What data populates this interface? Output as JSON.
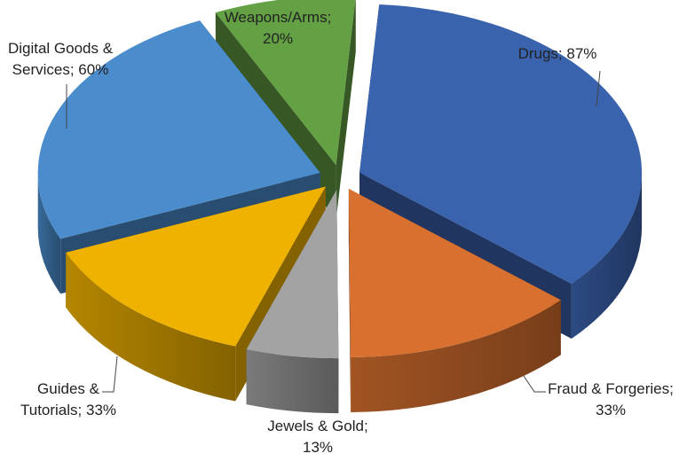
{
  "chart_data": {
    "type": "pie",
    "style": "3d-exploded",
    "title": "",
    "slices": [
      {
        "name": "Drugs",
        "value": 87,
        "label": [
          "Drugs; 87%"
        ],
        "color": "#3a63ae"
      },
      {
        "name": "Fraud & Forgeries",
        "value": 33,
        "label": [
          "Fraud & Forgeries;",
          "33%"
        ],
        "color": "#d8702f"
      },
      {
        "name": "Jewels & Gold",
        "value": 13,
        "label": [
          "Jewels & Gold;",
          "13%"
        ],
        "color": "#a3a3a3"
      },
      {
        "name": "Guides & Tutorials",
        "value": 33,
        "label": [
          "Guides  &",
          "Tutorials; 33%"
        ],
        "color": "#f0b200"
      },
      {
        "name": "Digital Goods & Services",
        "value": 60,
        "label": [
          "Digital Goods &",
          "Services; 60%"
        ],
        "color": "#4b8ccc"
      },
      {
        "name": "Weapons/Arms",
        "value": 20,
        "label": [
          "Weapons/Arms;",
          "20%"
        ],
        "color": "#64a044"
      }
    ],
    "legend": "none"
  }
}
